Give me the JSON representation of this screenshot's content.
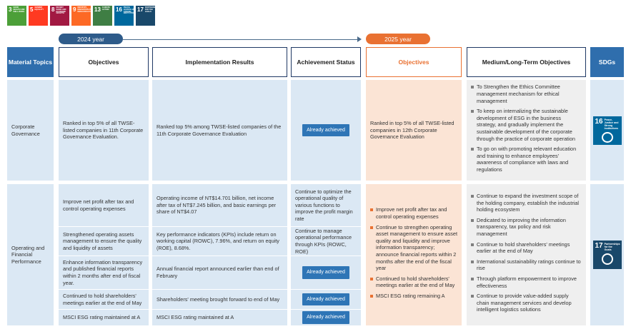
{
  "sdg_icons": [
    {
      "number": "3",
      "label": "GOOD HEALTH AND WELL-BEING",
      "color": "#4c9f38"
    },
    {
      "number": "5",
      "label": "GENDER EQUALITY",
      "color": "#ff3a21"
    },
    {
      "number": "8",
      "label": "DECENT WORK AND ECONOMIC GROWTH",
      "color": "#a21942"
    },
    {
      "number": "9",
      "label": "INDUSTRY, INNOVATION AND INFRASTRUCTURE",
      "color": "#fd6925"
    },
    {
      "number": "13",
      "label": "CLIMATE ACTION",
      "color": "#3f7e44"
    },
    {
      "number": "16",
      "label": "PEACE, JUSTICE AND STRONG INSTITUTIONS",
      "color": "#00689d"
    },
    {
      "number": "17",
      "label": "PARTNERSHIPS FOR THE GOALS",
      "color": "#19486a"
    }
  ],
  "timeline": {
    "year_2024": "2024 year",
    "year_2025": "2025 year"
  },
  "table": {
    "headers": [
      "Material Topics",
      "Objectives",
      "Implementation Results",
      "Achievement Status",
      "Objectives",
      "Medium/Long-Term Objectives",
      "SDGs"
    ],
    "rows": [
      {
        "topic": "Corporate Governance",
        "items": [
          {
            "objective": "Ranked in top 5% of all TWSE-listed companies in 11th Corporate Governance Evaluation.",
            "result": "Ranked top 5% among TWSE-listed companies of the 11th Corporate Governance Evaluation",
            "status": "Already achieved"
          }
        ],
        "objectives_2025": [
          "Ranked in top 5% of all TWSE-listed companies in 12th Corporate Governance Evaluation"
        ],
        "medium_long_term": [
          "To Strengthen the Ethics Committee management mechanism for ethical management",
          "To keep on internalizing the sustainable development of ESG in the business strategy, and gradually implement the sustainable development of the corporate through the practice of corporate operation",
          "To go on with promoting relevant education and training to enhance employees' awareness of compliance with laws and regulations"
        ],
        "sdg": {
          "number": "16",
          "label": "Peace, Justice and Strong Institutions"
        }
      },
      {
        "topic": "Operating and Financial Performance",
        "items": [
          {
            "objective": "Improve net profit after tax and control operating expenses",
            "result": "Operating income of NT$14.701 billion, net income after tax of NT$7.245 billion, and basic earnings per share of NT$4.07",
            "status": "Continue to optimize the operational quality of various functions to improve the profit margin rate"
          },
          {
            "objective": "Strengthened operating assets management to ensure the quality and liquidity of assets",
            "result": "Key performance indicators (KPIs) include return on working capital (ROWC), 7.96%, and return on equity (ROE), 8.68%.",
            "status": "Continue to manage operational performance through KPIs (ROWC, ROE)"
          },
          {
            "objective": "Enhance information transparency and published financial reports within 2 months after end of fiscal year.",
            "result": "Annual financial report announced earlier than end of February",
            "status": "Already achieved"
          },
          {
            "objective": "Continued to hold shareholders' meetings earlier at the end of May",
            "result": "Shareholders' meeting brought forward to end of May",
            "status": "Already achieved"
          },
          {
            "objective": "MSCI ESG rating maintained at A",
            "result": "MSCI ESG rating maintained at A",
            "status": "Already achieved"
          }
        ],
        "objectives_2025": [
          "Improve net profit after tax and control operating expenses",
          "Continue to strengthen operating asset management to ensure asset quality and liquidity and improve information transparency; announce financial reports within 2 months after the end of the fiscal year",
          "Continued to hold shareholders' meetings earlier at the end of May",
          "MSCI ESG rating remaining A"
        ],
        "medium_long_term": [
          "Continue to expand the investment scope of the holding company, establish the industrial holding ecosystem",
          "Dedicated to improving the information transparency, tax policy and risk management",
          "Continue to hold shareholders' meetings earlier at the end of May",
          "International sustainability ratings continue to rise",
          "Through platform empowerment to improve effectiveness",
          "Continue to provide value-added supply chain management services and develop intelligent logistics solutions"
        ],
        "sdg": {
          "number": "17",
          "label": "Partnerships for the Goals"
        }
      }
    ]
  }
}
